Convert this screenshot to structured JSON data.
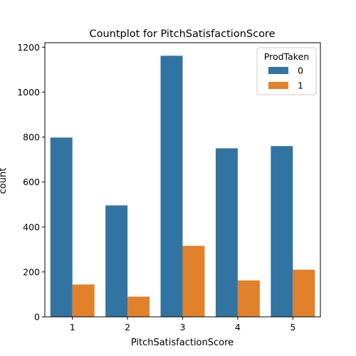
{
  "chart_data": {
    "type": "bar",
    "title": "Countplot for PitchSatisfactionScore",
    "xlabel": "PitchSatisfactionScore",
    "ylabel": "count",
    "categories": [
      "1",
      "2",
      "3",
      "4",
      "5"
    ],
    "series": [
      {
        "name": "0",
        "values": [
          798,
          496,
          1162,
          750,
          760
        ],
        "color": "#3274a1"
      },
      {
        "name": "1",
        "values": [
          144,
          90,
          316,
          162,
          210
        ],
        "color": "#e1812c"
      }
    ],
    "ylim": [
      0,
      1220
    ],
    "yticks": [
      0,
      200,
      400,
      600,
      800,
      1000,
      1200
    ],
    "legend": {
      "title": "ProdTaken",
      "placement": "upper-right"
    },
    "grid": false
  }
}
